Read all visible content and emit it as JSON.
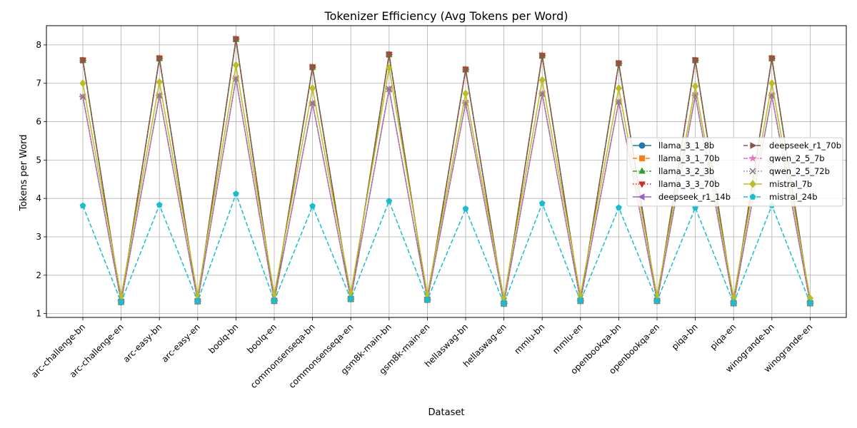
{
  "chart_data": {
    "type": "line",
    "title": "Tokenizer Efficiency (Avg Tokens per Word)",
    "xlabel": "Dataset",
    "ylabel": "Tokens per Word",
    "ylim": [
      0.9,
      8.5
    ],
    "yticks": [
      1,
      2,
      3,
      4,
      5,
      6,
      7,
      8
    ],
    "grid": true,
    "legend_position": "center-right",
    "legend_columns": 2,
    "categories": [
      "arc-challenge-bn",
      "arc-challenge-en",
      "arc-easy-bn",
      "arc-easy-en",
      "boolq-bn",
      "boolq-en",
      "commonsenseqa-bn",
      "commonsenseqa-en",
      "gsm8k-main-bn",
      "gsm8k-main-en",
      "hellaswag-bn",
      "hellaswag-en",
      "mmlu-bn",
      "mmlu-en",
      "openbookqa-bn",
      "openbookqa-en",
      "piqa-bn",
      "piqa-en",
      "winogrande-bn",
      "winogrande-en"
    ],
    "series": [
      {
        "name": "llama_3_1_8b",
        "color": "#1f77b4",
        "marker": "circle",
        "dash": "solid",
        "values": [
          7.6,
          1.3,
          7.65,
          1.32,
          8.15,
          1.33,
          7.42,
          1.38,
          7.75,
          1.36,
          7.36,
          1.26,
          7.72,
          1.33,
          7.52,
          1.33,
          7.6,
          1.27,
          7.65,
          1.27
        ]
      },
      {
        "name": "llama_3_1_70b",
        "color": "#ff7f0e",
        "marker": "square",
        "dash": "dashed",
        "values": [
          7.6,
          1.3,
          7.65,
          1.32,
          8.15,
          1.33,
          7.42,
          1.38,
          7.75,
          1.36,
          7.36,
          1.26,
          7.72,
          1.33,
          7.52,
          1.33,
          7.6,
          1.27,
          7.65,
          1.27
        ]
      },
      {
        "name": "llama_3_2_3b",
        "color": "#2ca02c",
        "marker": "triangle-up",
        "dash": "dashdot",
        "values": [
          7.6,
          1.3,
          7.65,
          1.32,
          8.15,
          1.33,
          7.42,
          1.38,
          7.75,
          1.36,
          7.36,
          1.26,
          7.72,
          1.33,
          7.52,
          1.33,
          7.6,
          1.27,
          7.65,
          1.27
        ]
      },
      {
        "name": "llama_3_3_70b",
        "color": "#d62728",
        "marker": "triangle-down",
        "dash": "dotted",
        "values": [
          7.6,
          1.3,
          7.65,
          1.32,
          8.15,
          1.33,
          7.42,
          1.38,
          7.75,
          1.36,
          7.36,
          1.26,
          7.72,
          1.33,
          7.52,
          1.33,
          7.6,
          1.27,
          7.65,
          1.27
        ]
      },
      {
        "name": "deepseek_r1_14b",
        "color": "#9467bd",
        "marker": "triangle-left",
        "dash": "solid",
        "values": [
          6.65,
          1.31,
          6.68,
          1.32,
          7.12,
          1.33,
          6.48,
          1.38,
          6.85,
          1.36,
          6.48,
          1.26,
          6.73,
          1.33,
          6.52,
          1.33,
          6.68,
          1.27,
          6.68,
          1.27
        ]
      },
      {
        "name": "deepseek_r1_70b",
        "color": "#8c564b",
        "marker": "triangle-right",
        "dash": "dashed",
        "values": [
          7.6,
          1.3,
          7.65,
          1.32,
          8.15,
          1.33,
          7.42,
          1.38,
          7.75,
          1.36,
          7.36,
          1.26,
          7.72,
          1.33,
          7.52,
          1.33,
          7.6,
          1.27,
          7.65,
          1.27
        ]
      },
      {
        "name": "qwen_2_5_7b",
        "color": "#e377c2",
        "marker": "star",
        "dash": "dashdot",
        "values": [
          6.65,
          1.31,
          6.68,
          1.32,
          7.12,
          1.33,
          6.48,
          1.38,
          6.85,
          1.36,
          6.48,
          1.26,
          6.73,
          1.33,
          6.52,
          1.33,
          6.68,
          1.27,
          6.68,
          1.27
        ]
      },
      {
        "name": "qwen_2_5_72b",
        "color": "#7f7f7f",
        "marker": "x",
        "dash": "dotted",
        "values": [
          6.65,
          1.31,
          6.68,
          1.32,
          7.12,
          1.33,
          6.48,
          1.38,
          6.85,
          1.36,
          6.48,
          1.26,
          6.73,
          1.33,
          6.52,
          1.33,
          6.68,
          1.27,
          6.68,
          1.27
        ]
      },
      {
        "name": "mistral_7b",
        "color": "#bcbd22",
        "marker": "diamond",
        "dash": "solid",
        "values": [
          7.0,
          1.45,
          7.03,
          1.47,
          7.47,
          1.5,
          6.87,
          1.53,
          7.4,
          1.5,
          6.73,
          1.4,
          7.08,
          1.48,
          6.87,
          1.47,
          6.92,
          1.42,
          7.0,
          1.4
        ]
      },
      {
        "name": "mistral_24b",
        "color": "#17becf",
        "marker": "pentagon",
        "dash": "dashed",
        "values": [
          3.81,
          1.3,
          3.83,
          1.32,
          4.12,
          1.33,
          3.8,
          1.38,
          3.93,
          1.36,
          3.73,
          1.26,
          3.87,
          1.33,
          3.76,
          1.33,
          3.76,
          1.27,
          3.82,
          1.27
        ]
      }
    ]
  }
}
